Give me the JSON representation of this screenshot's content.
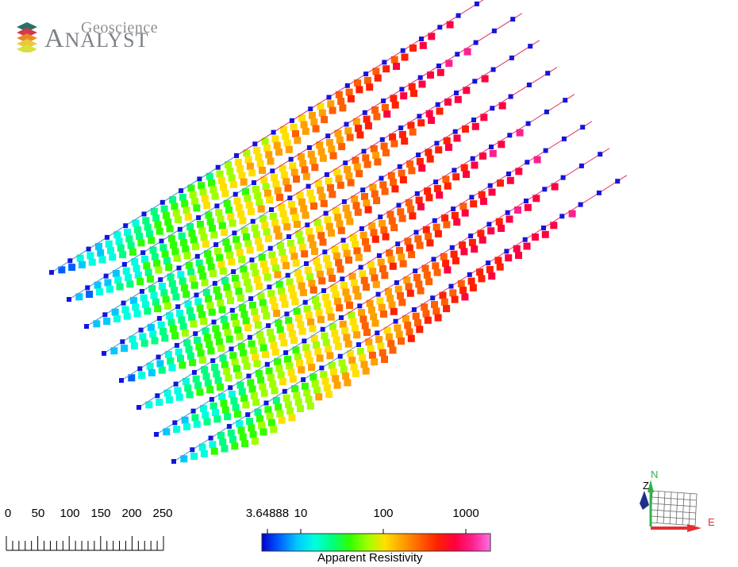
{
  "logo": {
    "line1": "Geoscience",
    "line2_first": "A",
    "line2_rest": "NALYST",
    "layer_colors": [
      "#2c6e6a",
      "#d23a4a",
      "#e8892c",
      "#e9c83a",
      "#d9df3c"
    ]
  },
  "scale_bar": {
    "labels": [
      "0",
      "50",
      "100",
      "150",
      "200",
      "250"
    ]
  },
  "color_legend": {
    "tick_labels": [
      "3.64888",
      "10",
      "100",
      "1000"
    ],
    "title": "Apparent Resistivity",
    "log_scale": true,
    "min": 3.64888,
    "max": 2000
  },
  "orientation": {
    "north_label": "N",
    "east_label": "E",
    "up_label": "Z",
    "north_color": "#2fb34a",
    "east_color": "#e23030",
    "up_color": "#1f2d8c"
  },
  "colors": {
    "electrode": "#1414e0",
    "palette": [
      "#0000d0",
      "#0060ff",
      "#00c8ff",
      "#00ffe0",
      "#00ff80",
      "#30ff00",
      "#a0ff00",
      "#ffe000",
      "#ffa000",
      "#ff6000",
      "#ff2000",
      "#ff0040",
      "#ff2090",
      "#ff70e0"
    ]
  }
}
